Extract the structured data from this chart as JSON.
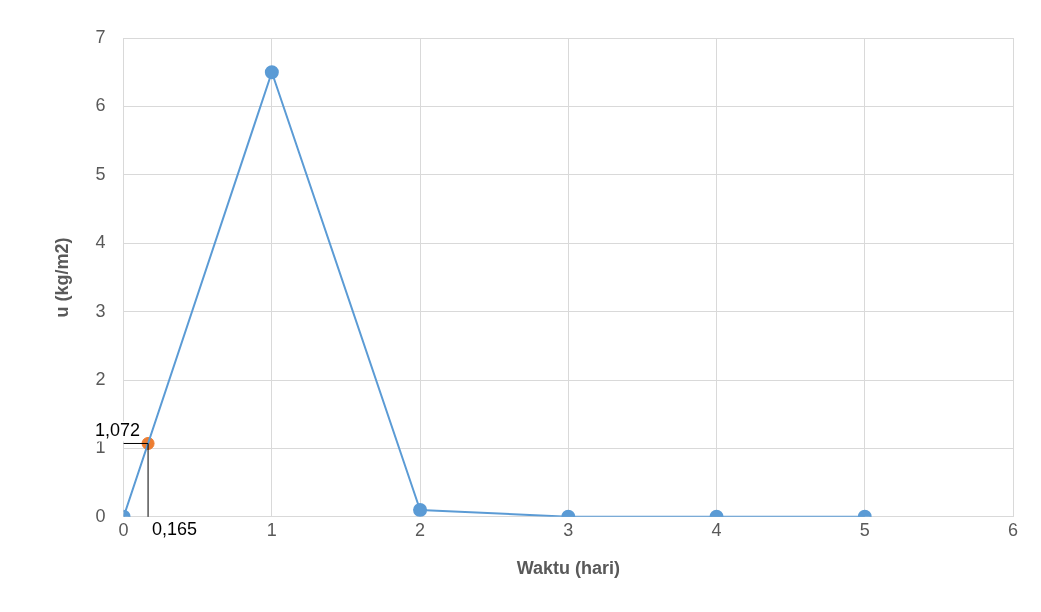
{
  "chart_data": {
    "type": "line",
    "xlabel": "Waktu (hari)",
    "ylabel": "u (kg/m2)",
    "series": [
      {
        "type": "line",
        "color": "#5b9bd5",
        "x": [
          0,
          1,
          2,
          3,
          4,
          5
        ],
        "values": [
          0,
          6.5,
          0.1,
          0,
          0,
          0
        ]
      },
      {
        "type": "scatter",
        "color": "#ed7d31",
        "x": [
          0.165
        ],
        "values": [
          1.072
        ]
      }
    ],
    "annotations": [
      {
        "text": "1,072",
        "x": 0.165,
        "y": 1.072
      },
      {
        "text": "0,165",
        "x": 0.165,
        "y": 1.072
      }
    ],
    "xlim": [
      0,
      6
    ],
    "xticks": [
      0,
      1,
      2,
      3,
      4,
      5,
      6
    ],
    "ylim": [
      0,
      7
    ],
    "yticks": [
      0,
      1,
      2,
      3,
      4,
      5,
      6,
      7
    ],
    "grid": true,
    "legend": false,
    "marker": "circle"
  }
}
